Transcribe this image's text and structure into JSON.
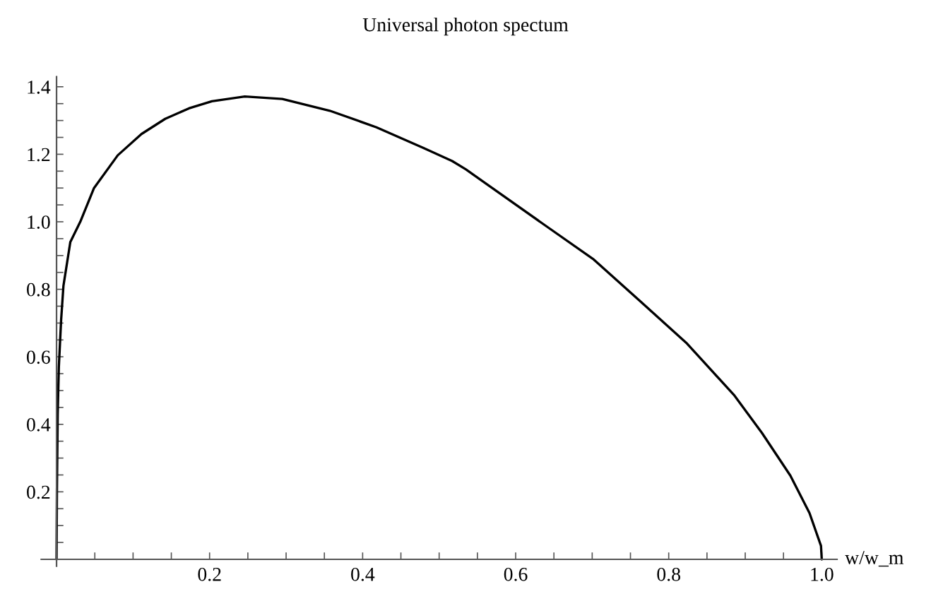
{
  "chart_data": {
    "type": "line",
    "title": "Universal photon spectum",
    "xlabel": "w/w_m",
    "xlim": [
      -0.02,
      1.02
    ],
    "ylim": [
      -0.02,
      1.43
    ],
    "xticks": [
      {
        "value": 0.05,
        "label": null
      },
      {
        "value": 0.1,
        "label": null
      },
      {
        "value": 0.15,
        "label": null
      },
      0.2,
      {
        "value": 0.25,
        "label": null
      },
      {
        "value": 0.3,
        "label": null
      },
      {
        "value": 0.35,
        "label": null
      },
      0.4,
      {
        "value": 0.45,
        "label": null
      },
      {
        "value": 0.5,
        "label": null
      },
      {
        "value": 0.55,
        "label": null
      },
      0.6,
      {
        "value": 0.65,
        "label": null
      },
      {
        "value": 0.7,
        "label": null
      },
      {
        "value": 0.75,
        "label": null
      },
      0.8,
      {
        "value": 0.85,
        "label": null
      },
      {
        "value": 0.9,
        "label": null
      },
      {
        "value": 0.95,
        "label": null
      },
      {
        "value": 1.0,
        "label": "1.0"
      }
    ],
    "yticks": [
      {
        "value": 0.05,
        "label": null
      },
      {
        "value": 0.1,
        "label": null
      },
      {
        "value": 0.15,
        "label": null
      },
      0.2,
      {
        "value": 0.25,
        "label": null
      },
      {
        "value": 0.3,
        "label": null
      },
      {
        "value": 0.35,
        "label": null
      },
      0.4,
      {
        "value": 0.45,
        "label": null
      },
      {
        "value": 0.5,
        "label": null
      },
      {
        "value": 0.55,
        "label": null
      },
      0.6,
      {
        "value": 0.65,
        "label": null
      },
      {
        "value": 0.7,
        "label": null
      },
      {
        "value": 0.75,
        "label": null
      },
      0.8,
      {
        "value": 0.85,
        "label": null
      },
      {
        "value": 0.9,
        "label": null
      },
      {
        "value": 0.95,
        "label": null
      },
      {
        "value": 1.0,
        "label": "1.0"
      },
      {
        "value": 1.05,
        "label": null
      },
      {
        "value": 1.1,
        "label": null
      },
      {
        "value": 1.15,
        "label": null
      },
      1.2,
      {
        "value": 1.25,
        "label": null
      },
      {
        "value": 1.3,
        "label": null
      },
      {
        "value": 1.35,
        "label": null
      },
      1.4
    ],
    "grid": false,
    "marker": "none",
    "line_style": "solid",
    "series": [
      {
        "color": "#000000",
        "x": [
          0,
          0.0005,
          0.0015,
          0.003,
          0.006,
          0.009,
          0.018,
          0.031,
          0.049,
          0.08,
          0.111,
          0.142,
          0.173,
          0.203,
          0.246,
          0.295,
          0.357,
          0.418,
          0.48,
          0.517,
          0.535,
          0.64,
          0.701,
          0.763,
          0.824,
          0.886,
          0.922,
          0.959,
          0.984,
          0.999,
          1.0
        ],
        "values": [
          0,
          0.2,
          0.43,
          0.57,
          0.71,
          0.81,
          0.94,
          1.0,
          1.1,
          1.197,
          1.26,
          1.305,
          1.336,
          1.357,
          1.371,
          1.364,
          1.329,
          1.28,
          1.218,
          1.18,
          1.155,
          0.987,
          0.89,
          0.764,
          0.639,
          0.485,
          0.374,
          0.248,
          0.137,
          0.04,
          0
        ]
      }
    ]
  }
}
